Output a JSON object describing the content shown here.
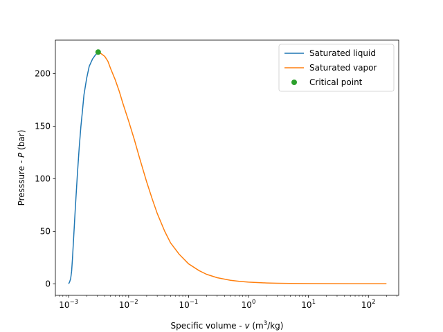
{
  "chart_data": {
    "type": "line",
    "xscale": "log",
    "xlim": [
      0.0006,
      320
    ],
    "ylim": [
      -11,
      232
    ],
    "xlabel_parts": [
      "Specific volume - ",
      "v",
      " (m",
      "3",
      "/kg)"
    ],
    "ylabel_parts": [
      "Presssure - ",
      "P",
      " (bar)"
    ],
    "x_ticks": [
      {
        "value": 0.001,
        "base": "10",
        "exp": "−3"
      },
      {
        "value": 0.01,
        "base": "10",
        "exp": "−2"
      },
      {
        "value": 0.1,
        "base": "10",
        "exp": "−1"
      },
      {
        "value": 1,
        "base": "10",
        "exp": "0"
      },
      {
        "value": 10,
        "base": "10",
        "exp": "1"
      },
      {
        "value": 100,
        "base": "10",
        "exp": "2"
      }
    ],
    "y_ticks": [
      0,
      50,
      100,
      150,
      200
    ],
    "series": [
      {
        "name": "Saturated liquid",
        "color": "#1f77b4",
        "style": "line",
        "x": [
          0.001,
          0.00104,
          0.00108,
          0.00112,
          0.00116,
          0.0012,
          0.00125,
          0.0013,
          0.0014,
          0.0015,
          0.0016,
          0.0017,
          0.0018,
          0.002,
          0.0022,
          0.0025,
          0.0028,
          0.003,
          0.003106
        ],
        "y": [
          0.0,
          2.0,
          5.0,
          12.0,
          25.0,
          40.0,
          58.0,
          75.0,
          105.0,
          130.0,
          150.0,
          165.0,
          180.0,
          196.0,
          207.0,
          214.0,
          218.0,
          219.5,
          220.6
        ]
      },
      {
        "name": "Saturated vapor",
        "color": "#ff7f0e",
        "style": "line",
        "x": [
          0.003106,
          0.0035,
          0.004,
          0.0045,
          0.005,
          0.006,
          0.007,
          0.008,
          0.01,
          0.0125,
          0.015,
          0.02,
          0.025,
          0.03,
          0.04,
          0.05,
          0.07,
          0.1,
          0.15,
          0.2,
          0.3,
          0.5,
          0.7,
          1.0,
          1.5,
          2,
          3,
          5,
          10,
          20,
          50,
          100,
          200
        ],
        "y": [
          220.6,
          219.0,
          216.5,
          212.0,
          205.0,
          194.0,
          183.0,
          172.0,
          155.0,
          137.0,
          121.0,
          97.0,
          80.0,
          67.0,
          50.0,
          39.0,
          28.0,
          19.0,
          12.5,
          9.0,
          5.8,
          3.3,
          2.3,
          1.6,
          1.1,
          0.8,
          0.55,
          0.35,
          0.18,
          0.09,
          0.04,
          0.02,
          0.01
        ]
      },
      {
        "name": "Critical point",
        "color": "#2ca02c",
        "style": "marker",
        "x": [
          0.003106
        ],
        "y": [
          220.6
        ]
      }
    ],
    "legend": {
      "location": "upper right"
    }
  }
}
